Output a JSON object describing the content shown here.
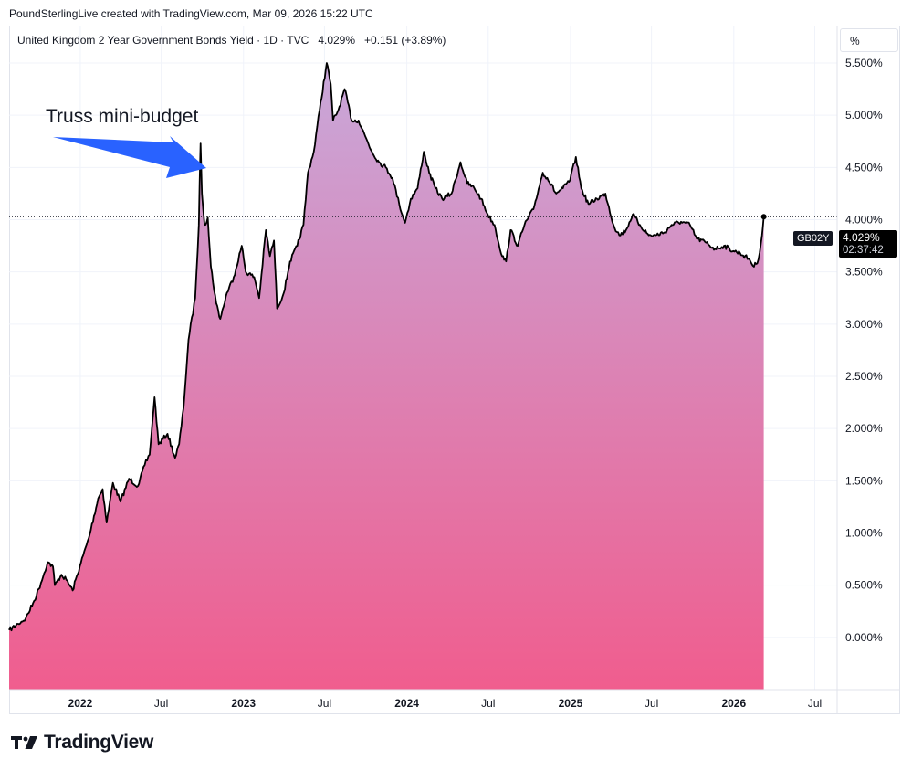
{
  "header": {
    "credit": "PoundSterlingLive created with TradingView.com, Mar 09, 2026 15:22 UTC"
  },
  "legend": {
    "symbol": "United Kingdom 2 Year Government Bonds Yield · 1D · TVC",
    "price": "4.029%",
    "change": "+0.151 (+3.89%)"
  },
  "unit_button": "%",
  "price_badge": {
    "ticker": "GB02Y",
    "value": "4.029%",
    "countdown": "02:37:42"
  },
  "footer": {
    "brand": "TradingView"
  },
  "colors": {
    "line": "#000000",
    "area_top": "#c8a8da",
    "area_bottom": "#f05d8e",
    "arrow": "#2962ff",
    "grid": "#f0f3fa"
  },
  "chart_data": {
    "type": "area",
    "title": "United Kingdom 2 Year Government Bonds Yield",
    "annotation": "Truss mini-budget",
    "y_ticks": [
      "0.000%",
      "0.500%",
      "1.000%",
      "1.500%",
      "2.000%",
      "2.500%",
      "3.000%",
      "3.500%",
      "4.000%",
      "4.500%",
      "5.000%",
      "5.500%"
    ],
    "y_tick_values": [
      0,
      0.5,
      1,
      1.5,
      2,
      2.5,
      3,
      3.5,
      4,
      4.5,
      5,
      5.5
    ],
    "x_ticks": [
      {
        "label": "2022",
        "date": "2022-01-01",
        "bold": true
      },
      {
        "label": "Jul",
        "date": "2022-07-01",
        "bold": false
      },
      {
        "label": "2023",
        "date": "2023-01-01",
        "bold": true
      },
      {
        "label": "Jul",
        "date": "2023-07-01",
        "bold": false
      },
      {
        "label": "2024",
        "date": "2024-01-01",
        "bold": true
      },
      {
        "label": "Jul",
        "date": "2024-07-01",
        "bold": false
      },
      {
        "label": "2025",
        "date": "2025-01-01",
        "bold": true
      },
      {
        "label": "Jul",
        "date": "2025-07-01",
        "bold": false
      },
      {
        "label": "2026",
        "date": "2026-01-01",
        "bold": true
      },
      {
        "label": "Jul",
        "date": "2026-07-01",
        "bold": false
      }
    ],
    "ylim": [
      -0.5,
      5.85
    ],
    "xlim": [
      "2021-07-26",
      "2026-08-20"
    ],
    "grid": true,
    "last_value": 4.029,
    "series": [
      {
        "points": [
          [
            "2021-07-26",
            0.07
          ],
          [
            "2021-08-15",
            0.13
          ],
          [
            "2021-09-01",
            0.18
          ],
          [
            "2021-09-20",
            0.35
          ],
          [
            "2021-10-05",
            0.52
          ],
          [
            "2021-10-20",
            0.72
          ],
          [
            "2021-11-01",
            0.68
          ],
          [
            "2021-11-05",
            0.5
          ],
          [
            "2021-11-20",
            0.6
          ],
          [
            "2021-12-01",
            0.55
          ],
          [
            "2021-12-15",
            0.45
          ],
          [
            "2021-12-31",
            0.68
          ],
          [
            "2022-01-20",
            0.95
          ],
          [
            "2022-02-10",
            1.33
          ],
          [
            "2022-02-20",
            1.42
          ],
          [
            "2022-03-01",
            1.1
          ],
          [
            "2022-03-15",
            1.48
          ],
          [
            "2022-04-01",
            1.3
          ],
          [
            "2022-04-20",
            1.52
          ],
          [
            "2022-05-10",
            1.45
          ],
          [
            "2022-05-25",
            1.65
          ],
          [
            "2022-06-05",
            1.75
          ],
          [
            "2022-06-16",
            2.3
          ],
          [
            "2022-06-25",
            1.85
          ],
          [
            "2022-07-15",
            1.95
          ],
          [
            "2022-08-01",
            1.72
          ],
          [
            "2022-08-10",
            1.85
          ],
          [
            "2022-08-20",
            2.2
          ],
          [
            "2022-08-31",
            2.85
          ],
          [
            "2022-09-15",
            3.25
          ],
          [
            "2022-09-23",
            3.95
          ],
          [
            "2022-09-27",
            4.73
          ],
          [
            "2022-09-30",
            4.25
          ],
          [
            "2022-10-06",
            3.95
          ],
          [
            "2022-10-13",
            4.02
          ],
          [
            "2022-10-20",
            3.55
          ],
          [
            "2022-11-01",
            3.2
          ],
          [
            "2022-11-10",
            3.05
          ],
          [
            "2022-11-25",
            3.3
          ],
          [
            "2022-12-10",
            3.45
          ],
          [
            "2022-12-28",
            3.75
          ],
          [
            "2023-01-06",
            3.5
          ],
          [
            "2023-01-25",
            3.45
          ],
          [
            "2023-02-05",
            3.25
          ],
          [
            "2023-02-20",
            3.9
          ],
          [
            "2023-03-01",
            3.65
          ],
          [
            "2023-03-10",
            3.8
          ],
          [
            "2023-03-17",
            3.15
          ],
          [
            "2023-04-01",
            3.3
          ],
          [
            "2023-04-15",
            3.6
          ],
          [
            "2023-05-01",
            3.75
          ],
          [
            "2023-05-15",
            3.95
          ],
          [
            "2023-05-25",
            4.45
          ],
          [
            "2023-06-07",
            4.65
          ],
          [
            "2023-06-20",
            5.05
          ],
          [
            "2023-07-06",
            5.5
          ],
          [
            "2023-07-15",
            5.3
          ],
          [
            "2023-07-20",
            4.95
          ],
          [
            "2023-08-01",
            5.05
          ],
          [
            "2023-08-15",
            5.25
          ],
          [
            "2023-08-31",
            4.95
          ],
          [
            "2023-09-15",
            4.95
          ],
          [
            "2023-09-30",
            4.8
          ],
          [
            "2023-10-15",
            4.65
          ],
          [
            "2023-10-31",
            4.55
          ],
          [
            "2023-11-15",
            4.5
          ],
          [
            "2023-11-30",
            4.4
          ],
          [
            "2023-12-15",
            4.15
          ],
          [
            "2023-12-28",
            3.97
          ],
          [
            "2024-01-10",
            4.2
          ],
          [
            "2024-01-25",
            4.3
          ],
          [
            "2024-02-08",
            4.65
          ],
          [
            "2024-02-20",
            4.45
          ],
          [
            "2024-03-05",
            4.3
          ],
          [
            "2024-03-20",
            4.2
          ],
          [
            "2024-04-10",
            4.25
          ],
          [
            "2024-04-30",
            4.55
          ],
          [
            "2024-05-15",
            4.35
          ],
          [
            "2024-05-31",
            4.3
          ],
          [
            "2024-06-15",
            4.2
          ],
          [
            "2024-06-30",
            4.05
          ],
          [
            "2024-07-15",
            3.95
          ],
          [
            "2024-08-01",
            3.65
          ],
          [
            "2024-08-10",
            3.6
          ],
          [
            "2024-08-20",
            3.9
          ],
          [
            "2024-09-05",
            3.75
          ],
          [
            "2024-09-20",
            3.95
          ],
          [
            "2024-10-10",
            4.1
          ],
          [
            "2024-10-31",
            4.45
          ],
          [
            "2024-11-10",
            4.4
          ],
          [
            "2024-11-30",
            4.25
          ],
          [
            "2024-12-15",
            4.3
          ],
          [
            "2024-12-31",
            4.38
          ],
          [
            "2025-01-13",
            4.6
          ],
          [
            "2025-01-25",
            4.3
          ],
          [
            "2025-02-10",
            4.15
          ],
          [
            "2025-03-01",
            4.2
          ],
          [
            "2025-03-20",
            4.25
          ],
          [
            "2025-04-07",
            3.95
          ],
          [
            "2025-04-20",
            3.85
          ],
          [
            "2025-05-05",
            3.9
          ],
          [
            "2025-05-20",
            4.05
          ],
          [
            "2025-06-05",
            3.95
          ],
          [
            "2025-06-25",
            3.85
          ],
          [
            "2025-07-10",
            3.85
          ],
          [
            "2025-07-31",
            3.88
          ],
          [
            "2025-08-15",
            3.95
          ],
          [
            "2025-09-05",
            3.98
          ],
          [
            "2025-09-25",
            3.95
          ],
          [
            "2025-10-10",
            3.82
          ],
          [
            "2025-10-31",
            3.78
          ],
          [
            "2025-11-20",
            3.72
          ],
          [
            "2025-12-10",
            3.75
          ],
          [
            "2025-12-31",
            3.7
          ],
          [
            "2026-01-15",
            3.68
          ],
          [
            "2026-02-05",
            3.62
          ],
          [
            "2026-02-15",
            3.55
          ],
          [
            "2026-02-25",
            3.62
          ],
          [
            "2026-03-05",
            3.85
          ],
          [
            "2026-03-09",
            4.029
          ]
        ]
      }
    ]
  }
}
